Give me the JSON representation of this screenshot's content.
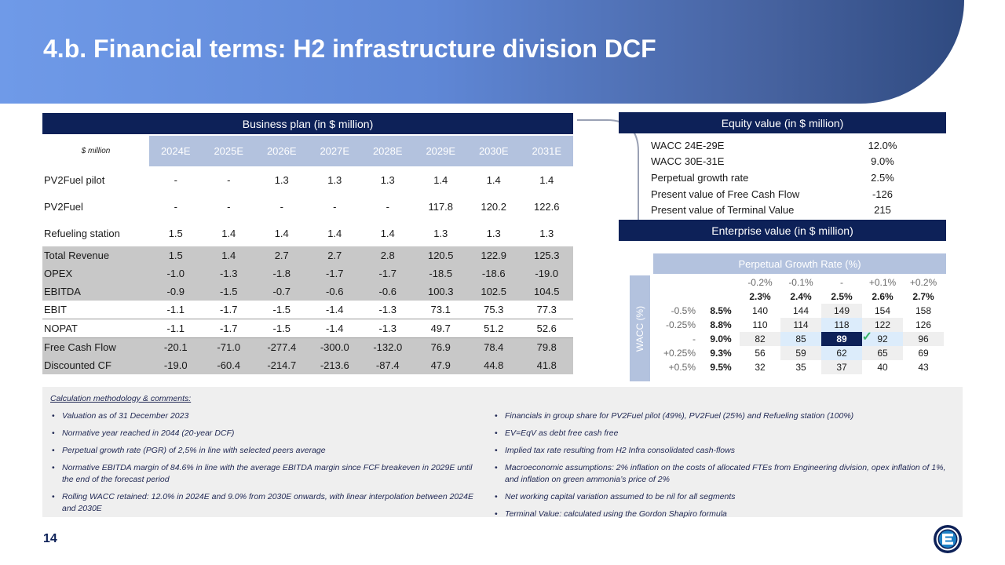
{
  "title": "4.b. Financial terms: H2 infrastructure division DCF",
  "business_plan": {
    "header": "Business plan (in $ million)",
    "unit_label": "$ million",
    "years": [
      "2024E",
      "2025E",
      "2026E",
      "2027E",
      "2028E",
      "2029E",
      "2030E",
      "2031E"
    ],
    "rows": [
      {
        "label": "PV2Fuel pilot",
        "values": [
          "-",
          "-",
          "1.3",
          "1.3",
          "1.3",
          "1.4",
          "1.4",
          "1.4"
        ]
      },
      {
        "label": "PV2Fuel",
        "values": [
          "-",
          "-",
          "-",
          "-",
          "-",
          "117.8",
          "120.2",
          "122.6"
        ]
      },
      {
        "label": "Refueling station",
        "values": [
          "1.5",
          "1.4",
          "1.4",
          "1.4",
          "1.4",
          "1.3",
          "1.3",
          "1.3"
        ]
      },
      {
        "label": "Total Revenue",
        "values": [
          "1.5",
          "1.4",
          "2.7",
          "2.7",
          "2.8",
          "120.5",
          "122.9",
          "125.3"
        ]
      },
      {
        "label": "OPEX",
        "values": [
          "-1.0",
          "-1.3",
          "-1.8",
          "-1.7",
          "-1.7",
          "-18.5",
          "-18.6",
          "-19.0"
        ]
      },
      {
        "label": "EBITDA",
        "values": [
          "-0.9",
          "-1.5",
          "-0.7",
          "-0.6",
          "-0.6",
          "100.3",
          "102.5",
          "104.5"
        ]
      },
      {
        "label": "EBIT",
        "values": [
          "-1.1",
          "-1.7",
          "-1.5",
          "-1.4",
          "-1.3",
          "73.1",
          "75.3",
          "77.3"
        ]
      },
      {
        "label": "NOPAT",
        "values": [
          "-1.1",
          "-1.7",
          "-1.5",
          "-1.4",
          "-1.3",
          "49.7",
          "51.2",
          "52.6"
        ]
      },
      {
        "label": "Free Cash Flow",
        "values": [
          "-20.1",
          "-71.0",
          "-277.4",
          "-300.0",
          "-132.0",
          "76.9",
          "78.4",
          "79.8"
        ]
      },
      {
        "label": "Discounted CF",
        "values": [
          "-19.0",
          "-60.4",
          "-214.7",
          "-213.6",
          "-87.4",
          "47.9",
          "44.8",
          "41.8"
        ]
      }
    ]
  },
  "equity": {
    "header": "Equity value (in $ million)",
    "rows": [
      {
        "label": "WACC 24E-29E",
        "value": "12.0%"
      },
      {
        "label": "WACC 30E-31E",
        "value": "9.0%"
      },
      {
        "label": "Perpetual growth rate",
        "value": "2.5%"
      },
      {
        "label": "Present value of Free Cash Flow",
        "value": "-126"
      },
      {
        "label": "Present value of Terminal Value",
        "value": "215"
      }
    ]
  },
  "enterprise": {
    "header": "Enterprise value (in $ million)"
  },
  "sensitivity": {
    "pgr_header": "Perpetual Growth Rate (%)",
    "wacc_label": "WACC (%)",
    "pgr_deltas": [
      "-0.2%",
      "-0.1%",
      "-",
      "+0.1%",
      "+0.2%"
    ],
    "pgr_values": [
      "2.3%",
      "2.4%",
      "2.5%",
      "2.6%",
      "2.7%"
    ],
    "rows": [
      {
        "delta": "-0.5%",
        "wacc": "8.5%",
        "values": [
          "140",
          "144",
          "149",
          "154",
          "158"
        ]
      },
      {
        "delta": "-0.25%",
        "wacc": "8.8%",
        "values": [
          "110",
          "114",
          "118",
          "122",
          "126"
        ]
      },
      {
        "delta": "-",
        "wacc": "9.0%",
        "values": [
          "82",
          "85",
          "89",
          "92",
          "96"
        ]
      },
      {
        "delta": "+0.25%",
        "wacc": "9.3%",
        "values": [
          "56",
          "59",
          "62",
          "65",
          "69"
        ]
      },
      {
        "delta": "+0.5%",
        "wacc": "9.5%",
        "values": [
          "32",
          "35",
          "37",
          "40",
          "43"
        ]
      }
    ],
    "check_symbol": "✓"
  },
  "comments": {
    "title": "Calculation methodology & comments:",
    "left": [
      "Valuation as of 31 December 2023",
      "Normative year reached in 2044 (20-year DCF)",
      "Perpetual growth rate (PGR) of 2,5% in line with selected peers average",
      "Normative EBITDA margin of 84.6% in line with the average EBITDA margin since FCF breakeven in 2029E until the end of the forecast period",
      "Rolling WACC retained: 12.0% in 2024E and 9.0% from 2030E onwards, with linear interpolation between 2024E and 2030E"
    ],
    "right": [
      "Financials in group share for PV2Fuel pilot (49%), PV2Fuel (25%) and Refueling station (100%)",
      "EV=EqV as debt free cash free",
      "Implied tax rate resulting from H2 Infra consolidated cash-flows",
      "Macroeconomic assumptions: 2% inflation on the costs of allocated FTEs from Engineering division, opex inflation of 1%, and inflation on green ammonia’s price of 2%",
      "Net working capital variation assumed to be nil for all segments",
      "Terminal Value: calculated using the Gordon Shapiro formula"
    ]
  },
  "page_number": "14",
  "colors": {
    "navy": "#0d2158",
    "header_blue": "#b3c2de",
    "highlight": "#dcecfb",
    "shade": "#c8c8c8"
  }
}
